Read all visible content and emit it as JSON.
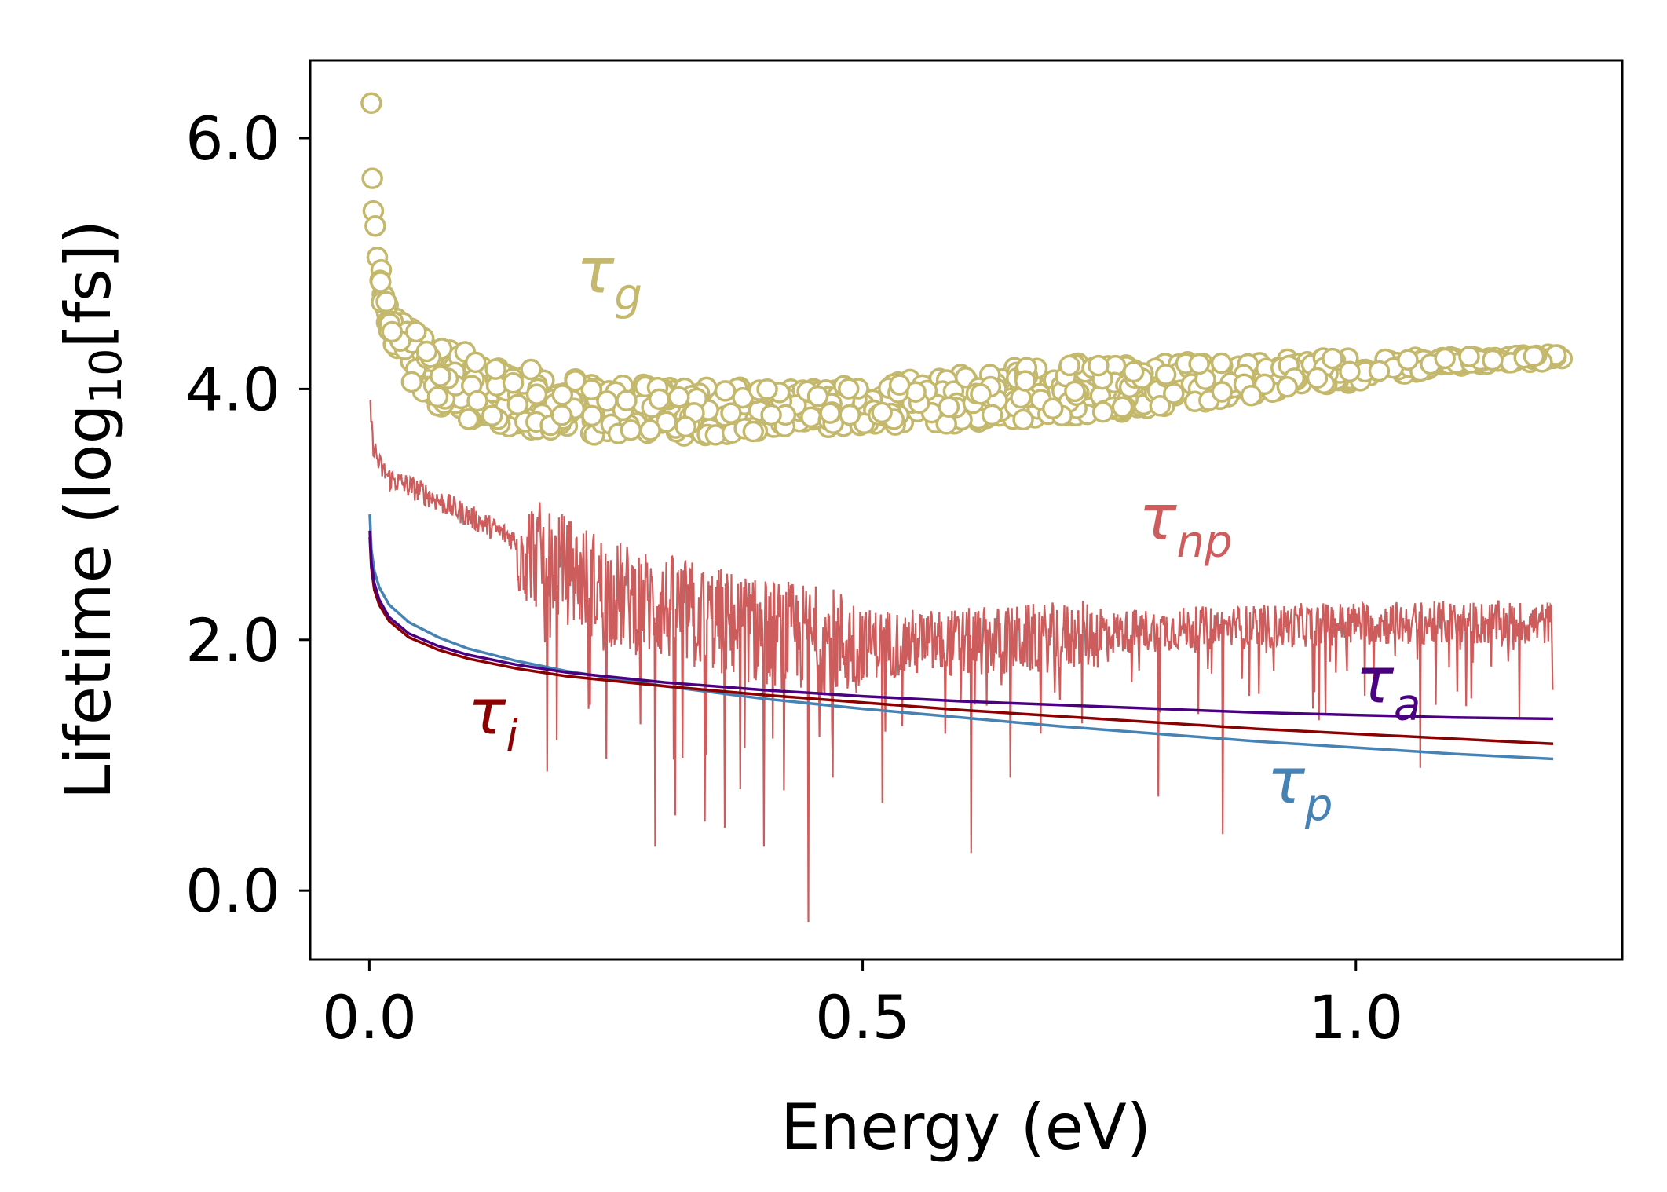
{
  "chart_data": {
    "type": "scatter",
    "xlabel": "Energy (eV)",
    "ylabel": {
      "main": "Lifetime (log",
      "sub": "10",
      "rest": "[fs])"
    },
    "xlim": [
      -0.06,
      1.27
    ],
    "ylim": [
      -0.55,
      6.62
    ],
    "x_ticks": [
      0.0,
      0.5,
      1.0
    ],
    "x_tick_labels": [
      "0.0",
      "0.5",
      "1.0"
    ],
    "y_ticks": [
      0.0,
      2.0,
      4.0,
      6.0
    ],
    "y_tick_labels": [
      "0.0",
      "2.0",
      "4.0",
      "6.0"
    ],
    "grid": false,
    "legend": "none",
    "series": [
      {
        "name": "τg",
        "label_main": "τ",
        "label_sub": "g",
        "kind": "scatter-hollow",
        "color": "#c4b86c",
        "x": [
          0.002,
          0.003,
          0.004,
          0.006,
          0.008,
          0.012,
          0.016,
          0.02,
          0.025,
          0.03,
          0.035,
          0.04,
          0.05,
          0.06,
          0.07,
          0.08,
          0.1,
          0.12,
          0.15,
          0.2,
          0.25,
          0.3,
          0.35,
          0.4,
          0.45,
          0.5,
          0.55,
          0.6,
          0.65,
          0.7,
          0.75,
          0.8,
          0.85,
          0.9,
          0.95,
          1.0,
          1.05,
          1.1,
          1.15,
          1.2,
          1.22
        ],
        "upper": [
          6.28,
          5.68,
          5.42,
          5.3,
          5.05,
          4.95,
          4.85,
          4.75,
          4.65,
          4.6,
          4.55,
          4.5,
          4.45,
          4.42,
          4.38,
          4.35,
          4.3,
          4.25,
          4.18,
          4.1,
          4.05,
          4.03,
          4.02,
          4.02,
          4.02,
          4.05,
          4.08,
          4.13,
          4.18,
          4.2,
          4.22,
          4.22,
          4.22,
          4.22,
          4.25,
          4.25,
          4.25,
          4.26,
          4.27,
          4.28,
          4.3
        ],
        "lower": [
          6.2,
          5.6,
          5.3,
          5.15,
          4.95,
          4.7,
          4.55,
          4.45,
          4.3,
          4.2,
          4.12,
          4.05,
          3.98,
          3.9,
          3.85,
          3.8,
          3.76,
          3.72,
          3.68,
          3.65,
          3.62,
          3.62,
          3.63,
          3.65,
          3.68,
          3.7,
          3.72,
          3.72,
          3.74,
          3.78,
          3.8,
          3.85,
          3.9,
          3.95,
          4.0,
          4.05,
          4.12,
          4.18,
          4.2,
          4.22,
          4.25
        ]
      },
      {
        "name": "τnp",
        "label_main": "τ",
        "label_sub": "np",
        "kind": "noisy-line",
        "color": "#cd5c5c",
        "x": [
          0.001,
          0.003,
          0.01,
          0.02,
          0.05,
          0.08,
          0.1,
          0.15,
          0.2,
          0.25,
          0.3,
          0.35,
          0.4,
          0.45,
          0.5,
          0.6,
          0.7,
          0.8,
          0.9,
          1.0,
          1.1,
          1.2
        ],
        "y": [
          3.9,
          3.6,
          3.4,
          3.3,
          3.2,
          3.08,
          3.0,
          2.8,
          2.6,
          2.4,
          2.3,
          2.2,
          2.1,
          2.05,
          2.0,
          2.0,
          2.05,
          2.1,
          2.12,
          2.15,
          2.15,
          2.15
        ],
        "dips": [
          [
            0.18,
            0.95
          ],
          [
            0.19,
            1.2
          ],
          [
            0.24,
            1.05
          ],
          [
            0.29,
            0.35
          ],
          [
            0.31,
            0.6
          ],
          [
            0.34,
            0.55
          ],
          [
            0.36,
            0.5
          ],
          [
            0.4,
            0.35
          ],
          [
            0.42,
            0.8
          ],
          [
            0.445,
            -0.25
          ],
          [
            0.47,
            0.9
          ],
          [
            0.52,
            0.7
          ],
          [
            0.61,
            0.3
          ],
          [
            0.65,
            0.9
          ],
          [
            0.8,
            0.75
          ],
          [
            0.865,
            0.45
          ],
          [
            1.065,
            0.98
          ],
          [
            1.2,
            1.6
          ]
        ]
      },
      {
        "name": "τi",
        "label_main": "τ",
        "label_sub": "i",
        "kind": "line",
        "color": "#8b0000",
        "x": [
          0.0005,
          0.002,
          0.005,
          0.01,
          0.02,
          0.04,
          0.07,
          0.1,
          0.15,
          0.2,
          0.3,
          0.4,
          0.5,
          0.6,
          0.7,
          0.8,
          0.9,
          1.0,
          1.1,
          1.2
        ],
        "y": [
          2.82,
          2.58,
          2.4,
          2.28,
          2.15,
          2.02,
          1.92,
          1.85,
          1.77,
          1.71,
          1.63,
          1.56,
          1.5,
          1.44,
          1.39,
          1.34,
          1.29,
          1.25,
          1.21,
          1.17
        ]
      },
      {
        "name": "τa",
        "label_main": "τ",
        "label_sub": "a",
        "kind": "line",
        "color": "#4b0082",
        "x": [
          0.0005,
          0.002,
          0.005,
          0.01,
          0.02,
          0.04,
          0.07,
          0.1,
          0.15,
          0.2,
          0.3,
          0.4,
          0.5,
          0.6,
          0.7,
          0.8,
          0.9,
          1.0,
          1.1,
          1.2
        ],
        "y": [
          2.87,
          2.62,
          2.45,
          2.32,
          2.18,
          2.05,
          1.95,
          1.88,
          1.8,
          1.74,
          1.66,
          1.6,
          1.55,
          1.51,
          1.48,
          1.45,
          1.42,
          1.4,
          1.38,
          1.37
        ]
      },
      {
        "name": "τp",
        "label_main": "τ",
        "label_sub": "p",
        "kind": "line",
        "color": "#4682b4",
        "x": [
          0.0005,
          0.002,
          0.005,
          0.01,
          0.02,
          0.04,
          0.07,
          0.1,
          0.15,
          0.2,
          0.3,
          0.4,
          0.5,
          0.6,
          0.7,
          0.8,
          0.9,
          1.0,
          1.1,
          1.2
        ],
        "y": [
          3.0,
          2.72,
          2.55,
          2.42,
          2.28,
          2.14,
          2.02,
          1.93,
          1.83,
          1.75,
          1.63,
          1.53,
          1.45,
          1.38,
          1.31,
          1.25,
          1.19,
          1.14,
          1.09,
          1.05
        ]
      }
    ],
    "annotations": [
      {
        "series": "τg",
        "x": 0.21,
        "y": 4.77
      },
      {
        "series": "τnp",
        "x": 0.78,
        "y": 2.8
      },
      {
        "series": "τa",
        "x": 1.0,
        "y": 1.5
      },
      {
        "series": "τi",
        "x": 0.1,
        "y": 1.25
      },
      {
        "series": "τp",
        "x": 0.91,
        "y": 0.7
      }
    ]
  }
}
